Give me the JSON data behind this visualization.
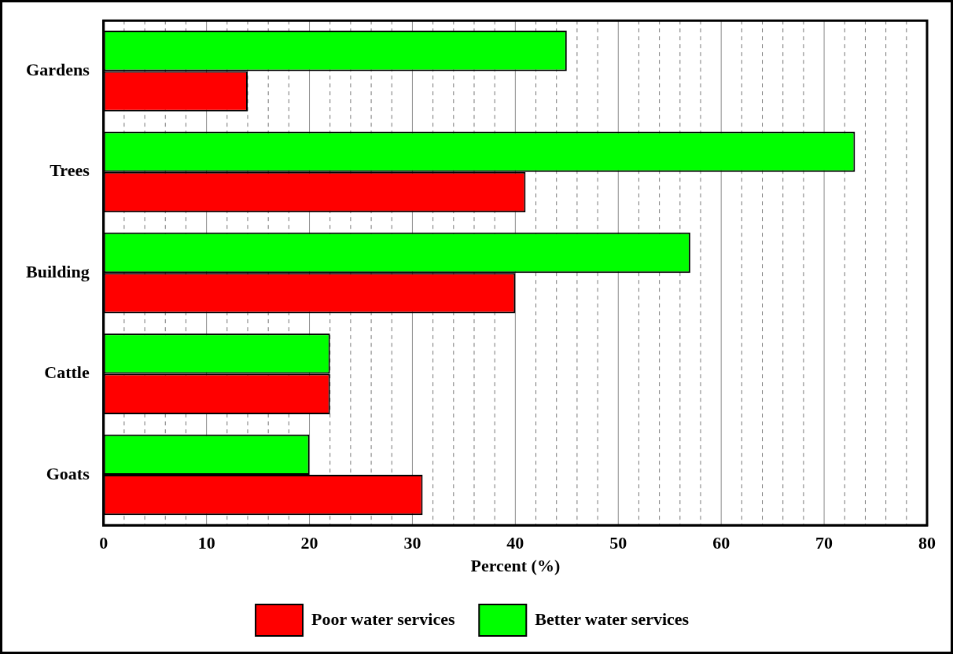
{
  "chart_data": {
    "type": "bar",
    "orientation": "horizontal",
    "xlabel": "Percent (%)",
    "categories": [
      "Gardens",
      "Trees",
      "Building",
      "Cattle",
      "Goats"
    ],
    "series": [
      {
        "name": "Poor water services",
        "color": "#ff0000",
        "values": [
          14,
          41,
          40,
          22,
          31
        ]
      },
      {
        "name": "Better water services",
        "color": "#00ff00",
        "values": [
          45,
          73,
          57,
          22,
          20
        ]
      }
    ],
    "xlim": [
      0,
      80
    ],
    "xticks": [
      0,
      {
        "value": 2,
        "label": null
      },
      {
        "value": 4,
        "label": null
      },
      {
        "value": 6,
        "label": null
      },
      {
        "value": 8,
        "label": null
      },
      10,
      {
        "value": 12,
        "label": null
      },
      {
        "value": 14,
        "label": null
      },
      {
        "value": 16,
        "label": null
      },
      {
        "value": 18,
        "label": null
      },
      20,
      {
        "value": 22,
        "label": null
      },
      {
        "value": 24,
        "label": null
      },
      {
        "value": 26,
        "label": null
      },
      {
        "value": 28,
        "label": null
      },
      30,
      {
        "value": 32,
        "label": null
      },
      {
        "value": 34,
        "label": null
      },
      {
        "value": 36,
        "label": null
      },
      {
        "value": 38,
        "label": null
      },
      40,
      {
        "value": 42,
        "label": null
      },
      {
        "value": 44,
        "label": null
      },
      {
        "value": 46,
        "label": null
      },
      {
        "value": 48,
        "label": null
      },
      50,
      {
        "value": 52,
        "label": null
      },
      {
        "value": 54,
        "label": null
      },
      {
        "value": 56,
        "label": null
      },
      {
        "value": 58,
        "label": null
      },
      60,
      {
        "value": 62,
        "label": null
      },
      {
        "value": 64,
        "label": null
      },
      {
        "value": 66,
        "label": null
      },
      {
        "value": 68,
        "label": null
      },
      70,
      {
        "value": 72,
        "label": null
      },
      {
        "value": 74,
        "label": null
      },
      {
        "value": 76,
        "label": null
      },
      {
        "value": 78,
        "label": null
      },
      80
    ],
    "grid": "x",
    "legend": "bottom"
  }
}
